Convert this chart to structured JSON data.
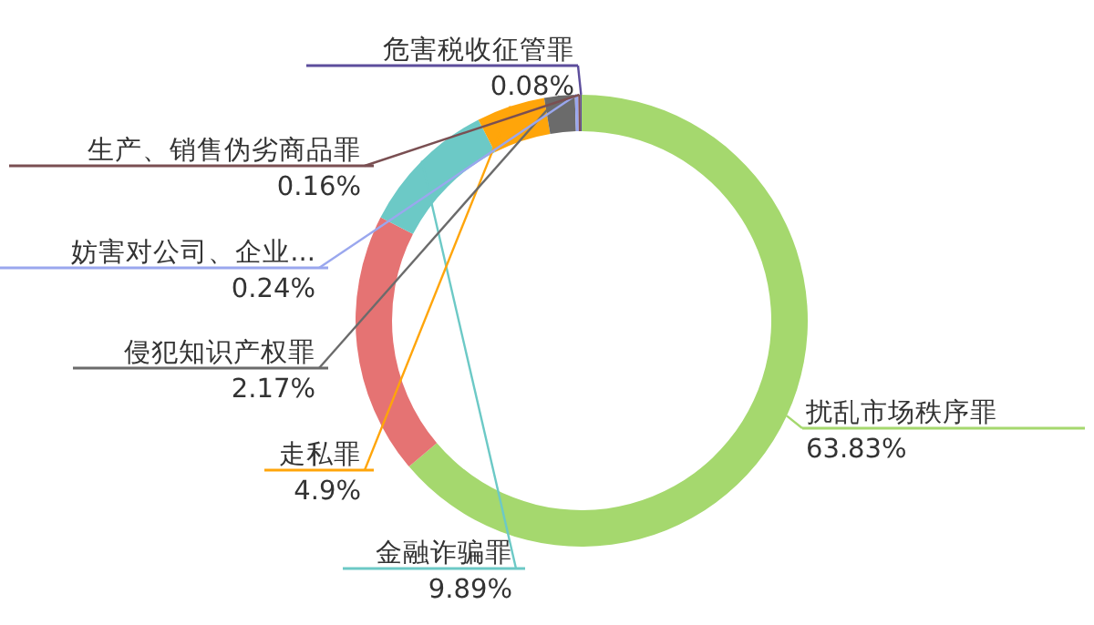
{
  "chart_data": {
    "type": "donut",
    "categories": [
      "扰乱市场秩序罪",
      null,
      "金融诈骗罪",
      "走私罪",
      "侵犯知识产权罪",
      "妨害对公司、企业...",
      "生产、销售伪劣商品罪",
      "危害税收征管罪"
    ],
    "values": [
      63.83,
      18.73,
      9.89,
      4.9,
      2.17,
      0.24,
      0.16,
      0.08
    ],
    "value_labels": [
      "63.83%",
      null,
      "9.89%",
      "4.9%",
      "2.17%",
      "0.24%",
      "0.16%",
      "0.08%"
    ],
    "colors": [
      "#a5d86e",
      "#e57373",
      "#6cc9c6",
      "#ffa50a",
      "#6b6b6b",
      "#9aa7ee",
      "#7a4f52",
      "#5c4d9c"
    ],
    "legend": false
  }
}
